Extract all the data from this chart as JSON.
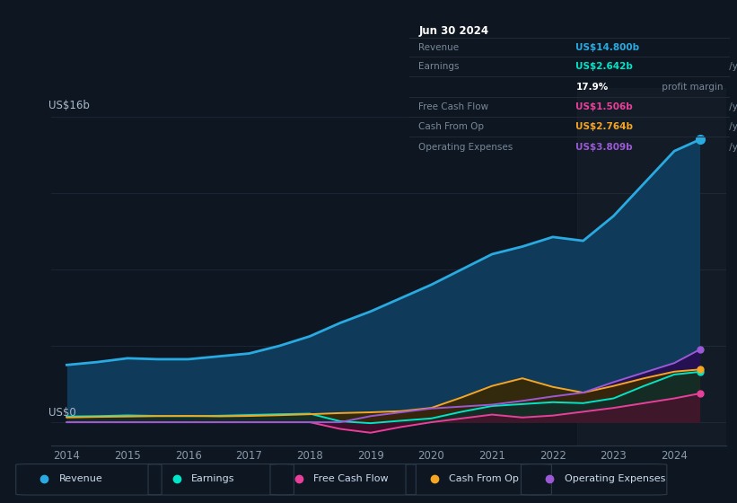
{
  "bg_color": "#0e1621",
  "plot_bg_color": "#0e1621",
  "grid_color": "#1a2535",
  "years": [
    2014.0,
    2014.5,
    2015.0,
    2015.5,
    2016.0,
    2016.5,
    2017.0,
    2017.5,
    2018.0,
    2018.5,
    2019.0,
    2019.5,
    2020.0,
    2020.5,
    2021.0,
    2021.5,
    2022.0,
    2022.5,
    2023.0,
    2023.5,
    2024.0,
    2024.42
  ],
  "revenue": [
    3.0,
    3.15,
    3.35,
    3.3,
    3.3,
    3.45,
    3.6,
    4.0,
    4.5,
    5.2,
    5.8,
    6.5,
    7.2,
    8.0,
    8.8,
    9.2,
    9.7,
    9.5,
    10.8,
    12.5,
    14.2,
    14.8
  ],
  "earnings": [
    0.3,
    0.32,
    0.36,
    0.33,
    0.32,
    0.34,
    0.38,
    0.42,
    0.45,
    0.05,
    -0.05,
    0.08,
    0.2,
    0.55,
    0.85,
    0.95,
    1.05,
    1.0,
    1.25,
    1.9,
    2.5,
    2.642
  ],
  "free_cash_flow": [
    0.0,
    0.0,
    0.0,
    0.0,
    0.0,
    0.0,
    0.0,
    0.0,
    0.0,
    -0.35,
    -0.55,
    -0.25,
    0.0,
    0.2,
    0.4,
    0.25,
    0.35,
    0.55,
    0.75,
    1.0,
    1.25,
    1.506
  ],
  "cash_from_op": [
    0.25,
    0.28,
    0.3,
    0.32,
    0.33,
    0.31,
    0.33,
    0.37,
    0.42,
    0.48,
    0.52,
    0.58,
    0.75,
    1.3,
    1.9,
    2.3,
    1.85,
    1.55,
    1.9,
    2.3,
    2.65,
    2.764
  ],
  "op_expenses": [
    0.0,
    0.0,
    0.0,
    0.0,
    0.0,
    0.0,
    0.0,
    0.0,
    0.0,
    0.0,
    0.32,
    0.52,
    0.72,
    0.82,
    0.92,
    1.12,
    1.35,
    1.55,
    2.1,
    2.6,
    3.1,
    3.809
  ],
  "revenue_color": "#29abe2",
  "earnings_color": "#00e5c8",
  "fcf_color": "#e8409a",
  "cashop_color": "#f5a623",
  "opex_color": "#9b59d6",
  "revenue_fill": "#0f3a5a",
  "earnings_fill": "#073030",
  "fcf_fill": "#5a0a30",
  "cashop_fill": "#3a2800",
  "opex_fill": "#2a0a50",
  "ylabel": "US$16b",
  "y0label": "US$0",
  "ylim": [
    -1.2,
    17.5
  ],
  "xlim": [
    2013.75,
    2024.85
  ],
  "xticks": [
    2014,
    2015,
    2016,
    2017,
    2018,
    2019,
    2020,
    2021,
    2022,
    2023,
    2024
  ],
  "y_gridlines": [
    0,
    4,
    8,
    12,
    16
  ],
  "legend_items": [
    "Revenue",
    "Earnings",
    "Free Cash Flow",
    "Cash From Op",
    "Operating Expenses"
  ],
  "legend_colors": [
    "#29abe2",
    "#00e5c8",
    "#e8409a",
    "#f5a623",
    "#9b59d6"
  ],
  "info_box": {
    "date": "Jun 30 2024",
    "rows": [
      {
        "label": "Revenue",
        "value": "US$14.800b",
        "unit": " /yr",
        "value_color": "#29abe2"
      },
      {
        "label": "Earnings",
        "value": "US$2.642b",
        "unit": " /yr",
        "value_color": "#00e5c8"
      },
      {
        "label": "",
        "value": "17.9%",
        "unit": " profit margin",
        "value_color": "#ffffff"
      },
      {
        "label": "Free Cash Flow",
        "value": "US$1.506b",
        "unit": " /yr",
        "value_color": "#e8409a"
      },
      {
        "label": "Cash From Op",
        "value": "US$2.764b",
        "unit": " /yr",
        "value_color": "#f5a623"
      },
      {
        "label": "Operating Expenses",
        "value": "US$3.809b",
        "unit": " /yr",
        "value_color": "#9b59d6"
      }
    ]
  },
  "marker_x": 2024.42,
  "markers": [
    14.8,
    2.642,
    1.506,
    2.764,
    3.809
  ]
}
